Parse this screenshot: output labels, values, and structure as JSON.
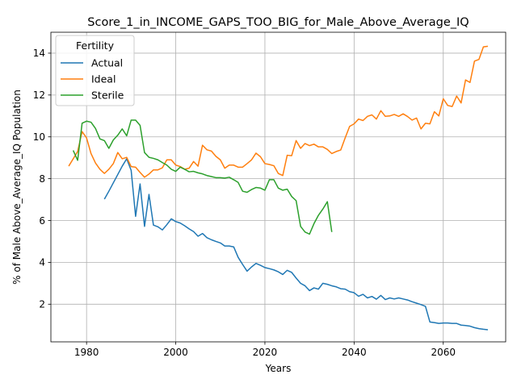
{
  "chart_data": {
    "type": "line",
    "title": "Score_1_in_INCOME_GAPS_TOO_BIG_for_Male_Above_Average_IQ",
    "xlabel": "Years",
    "ylabel": "% of Male Above_Average_IQ Population",
    "xlim": [
      1972,
      2074
    ],
    "ylim": [
      0.2,
      15.0
    ],
    "xticks": [
      1980,
      2000,
      2020,
      2040,
      2060
    ],
    "yticks": [
      2,
      4,
      6,
      8,
      10,
      12,
      14
    ],
    "grid": true,
    "legend": {
      "title": "Fertility",
      "position": "top-left"
    },
    "series": [
      {
        "name": "Actual",
        "color": "#1f77b4",
        "x": [
          1984,
          1985,
          1986,
          1987,
          1988,
          1989,
          1990,
          1991,
          1992,
          1993,
          1994,
          1995,
          1996,
          1997,
          1998,
          1999,
          2000,
          2001,
          2002,
          2003,
          2004,
          2005,
          2006,
          2007,
          2008,
          2009,
          2010,
          2011,
          2012,
          2013,
          2014,
          2015,
          2016,
          2017,
          2018,
          2019,
          2020,
          2021,
          2022,
          2023,
          2024,
          2025,
          2026,
          2027,
          2028,
          2029,
          2030,
          2031,
          2032,
          2033,
          2034,
          2035,
          2036,
          2037,
          2038,
          2039,
          2040,
          2041,
          2042,
          2043,
          2044,
          2045,
          2046,
          2047,
          2048,
          2049,
          2050,
          2051,
          2052,
          2053,
          2054,
          2055,
          2056,
          2057,
          2058,
          2059,
          2060,
          2061,
          2062,
          2063,
          2064,
          2065,
          2066,
          2067,
          2068,
          2069,
          2070
        ],
        "values": [
          7.02,
          7.4,
          7.8,
          8.2,
          8.6,
          8.95,
          8.4,
          6.2,
          7.75,
          5.72,
          7.25,
          5.78,
          5.7,
          5.55,
          5.8,
          6.08,
          5.95,
          5.88,
          5.75,
          5.6,
          5.47,
          5.25,
          5.38,
          5.18,
          5.08,
          5.0,
          4.93,
          4.78,
          4.78,
          4.74,
          4.24,
          3.9,
          3.58,
          3.78,
          3.95,
          3.86,
          3.75,
          3.7,
          3.64,
          3.55,
          3.42,
          3.62,
          3.52,
          3.25,
          3.0,
          2.88,
          2.65,
          2.78,
          2.72,
          3.0,
          2.95,
          2.88,
          2.83,
          2.74,
          2.72,
          2.6,
          2.55,
          2.38,
          2.47,
          2.3,
          2.37,
          2.24,
          2.42,
          2.22,
          2.3,
          2.25,
          2.3,
          2.25,
          2.2,
          2.12,
          2.05,
          1.98,
          1.9,
          1.15,
          1.12,
          1.08,
          1.1,
          1.1,
          1.08,
          1.08,
          1.0,
          0.98,
          0.95,
          0.88,
          0.83,
          0.8,
          0.78
        ]
      },
      {
        "name": "Ideal",
        "color": "#ff7f0e",
        "x": [
          1976,
          1977,
          1978,
          1979,
          1980,
          1981,
          1982,
          1983,
          1984,
          1985,
          1986,
          1987,
          1988,
          1989,
          1990,
          1991,
          1992,
          1993,
          1994,
          1995,
          1996,
          1997,
          1998,
          1999,
          2000,
          2001,
          2002,
          2003,
          2004,
          2005,
          2006,
          2007,
          2008,
          2009,
          2010,
          2011,
          2012,
          2013,
          2014,
          2015,
          2016,
          2017,
          2018,
          2019,
          2020,
          2021,
          2022,
          2023,
          2024,
          2025,
          2026,
          2027,
          2028,
          2029,
          2030,
          2031,
          2032,
          2033,
          2034,
          2035,
          2036,
          2037,
          2038,
          2039,
          2040,
          2041,
          2042,
          2043,
          2044,
          2045,
          2046,
          2047,
          2048,
          2049,
          2050,
          2051,
          2052,
          2053,
          2054,
          2055,
          2056,
          2057,
          2058,
          2059,
          2060,
          2061,
          2062,
          2063,
          2064,
          2065,
          2066,
          2067,
          2068,
          2069,
          2070
        ],
        "values": [
          8.6,
          8.95,
          9.3,
          10.25,
          9.95,
          9.2,
          8.75,
          8.45,
          8.25,
          8.45,
          8.72,
          9.25,
          8.95,
          9.02,
          8.58,
          8.55,
          8.3,
          8.07,
          8.22,
          8.42,
          8.42,
          8.52,
          8.9,
          8.9,
          8.65,
          8.58,
          8.45,
          8.5,
          8.82,
          8.6,
          9.6,
          9.38,
          9.32,
          9.07,
          8.9,
          8.5,
          8.65,
          8.65,
          8.55,
          8.55,
          8.72,
          8.9,
          9.22,
          9.05,
          8.72,
          8.68,
          8.62,
          8.25,
          8.15,
          9.12,
          9.1,
          9.82,
          9.45,
          9.68,
          9.58,
          9.65,
          9.52,
          9.52,
          9.4,
          9.2,
          9.3,
          9.37,
          9.95,
          10.5,
          10.62,
          10.85,
          10.78,
          10.98,
          11.05,
          10.85,
          11.25,
          10.98,
          11.0,
          11.07,
          10.98,
          11.1,
          10.97,
          10.8,
          10.9,
          10.38,
          10.65,
          10.62,
          11.2,
          11.0,
          11.82,
          11.5,
          11.45,
          11.95,
          11.62,
          12.72,
          12.6,
          13.62,
          13.7,
          14.3,
          14.33
        ]
      },
      {
        "name": "Sterile",
        "color": "#2ca02c",
        "x": [
          1977,
          1978,
          1979,
          1980,
          1981,
          1982,
          1983,
          1984,
          1985,
          1986,
          1987,
          1988,
          1989,
          1990,
          1991,
          1992,
          1993,
          1994,
          1995,
          1996,
          1997,
          1998,
          1999,
          2000,
          2001,
          2002,
          2003,
          2004,
          2005,
          2006,
          2007,
          2008,
          2009,
          2010,
          2011,
          2012,
          2013,
          2014,
          2015,
          2016,
          2017,
          2018,
          2019,
          2020,
          2021,
          2022,
          2023,
          2024,
          2025,
          2026,
          2027,
          2028,
          2029,
          2030,
          2031,
          2032,
          2033,
          2034,
          2035
        ],
        "values": [
          9.35,
          8.88,
          10.65,
          10.75,
          10.7,
          10.4,
          9.9,
          9.82,
          9.45,
          9.85,
          10.08,
          10.38,
          10.05,
          10.8,
          10.8,
          10.55,
          9.25,
          9.02,
          8.97,
          8.9,
          8.77,
          8.65,
          8.45,
          8.35,
          8.55,
          8.45,
          8.33,
          8.35,
          8.28,
          8.23,
          8.15,
          8.1,
          8.05,
          8.05,
          8.03,
          8.07,
          7.95,
          7.82,
          7.4,
          7.35,
          7.48,
          7.58,
          7.55,
          7.45,
          7.95,
          7.95,
          7.55,
          7.45,
          7.5,
          7.15,
          6.95,
          5.72,
          5.45,
          5.35,
          5.85,
          6.25,
          6.55,
          6.9,
          5.45
        ]
      }
    ]
  }
}
